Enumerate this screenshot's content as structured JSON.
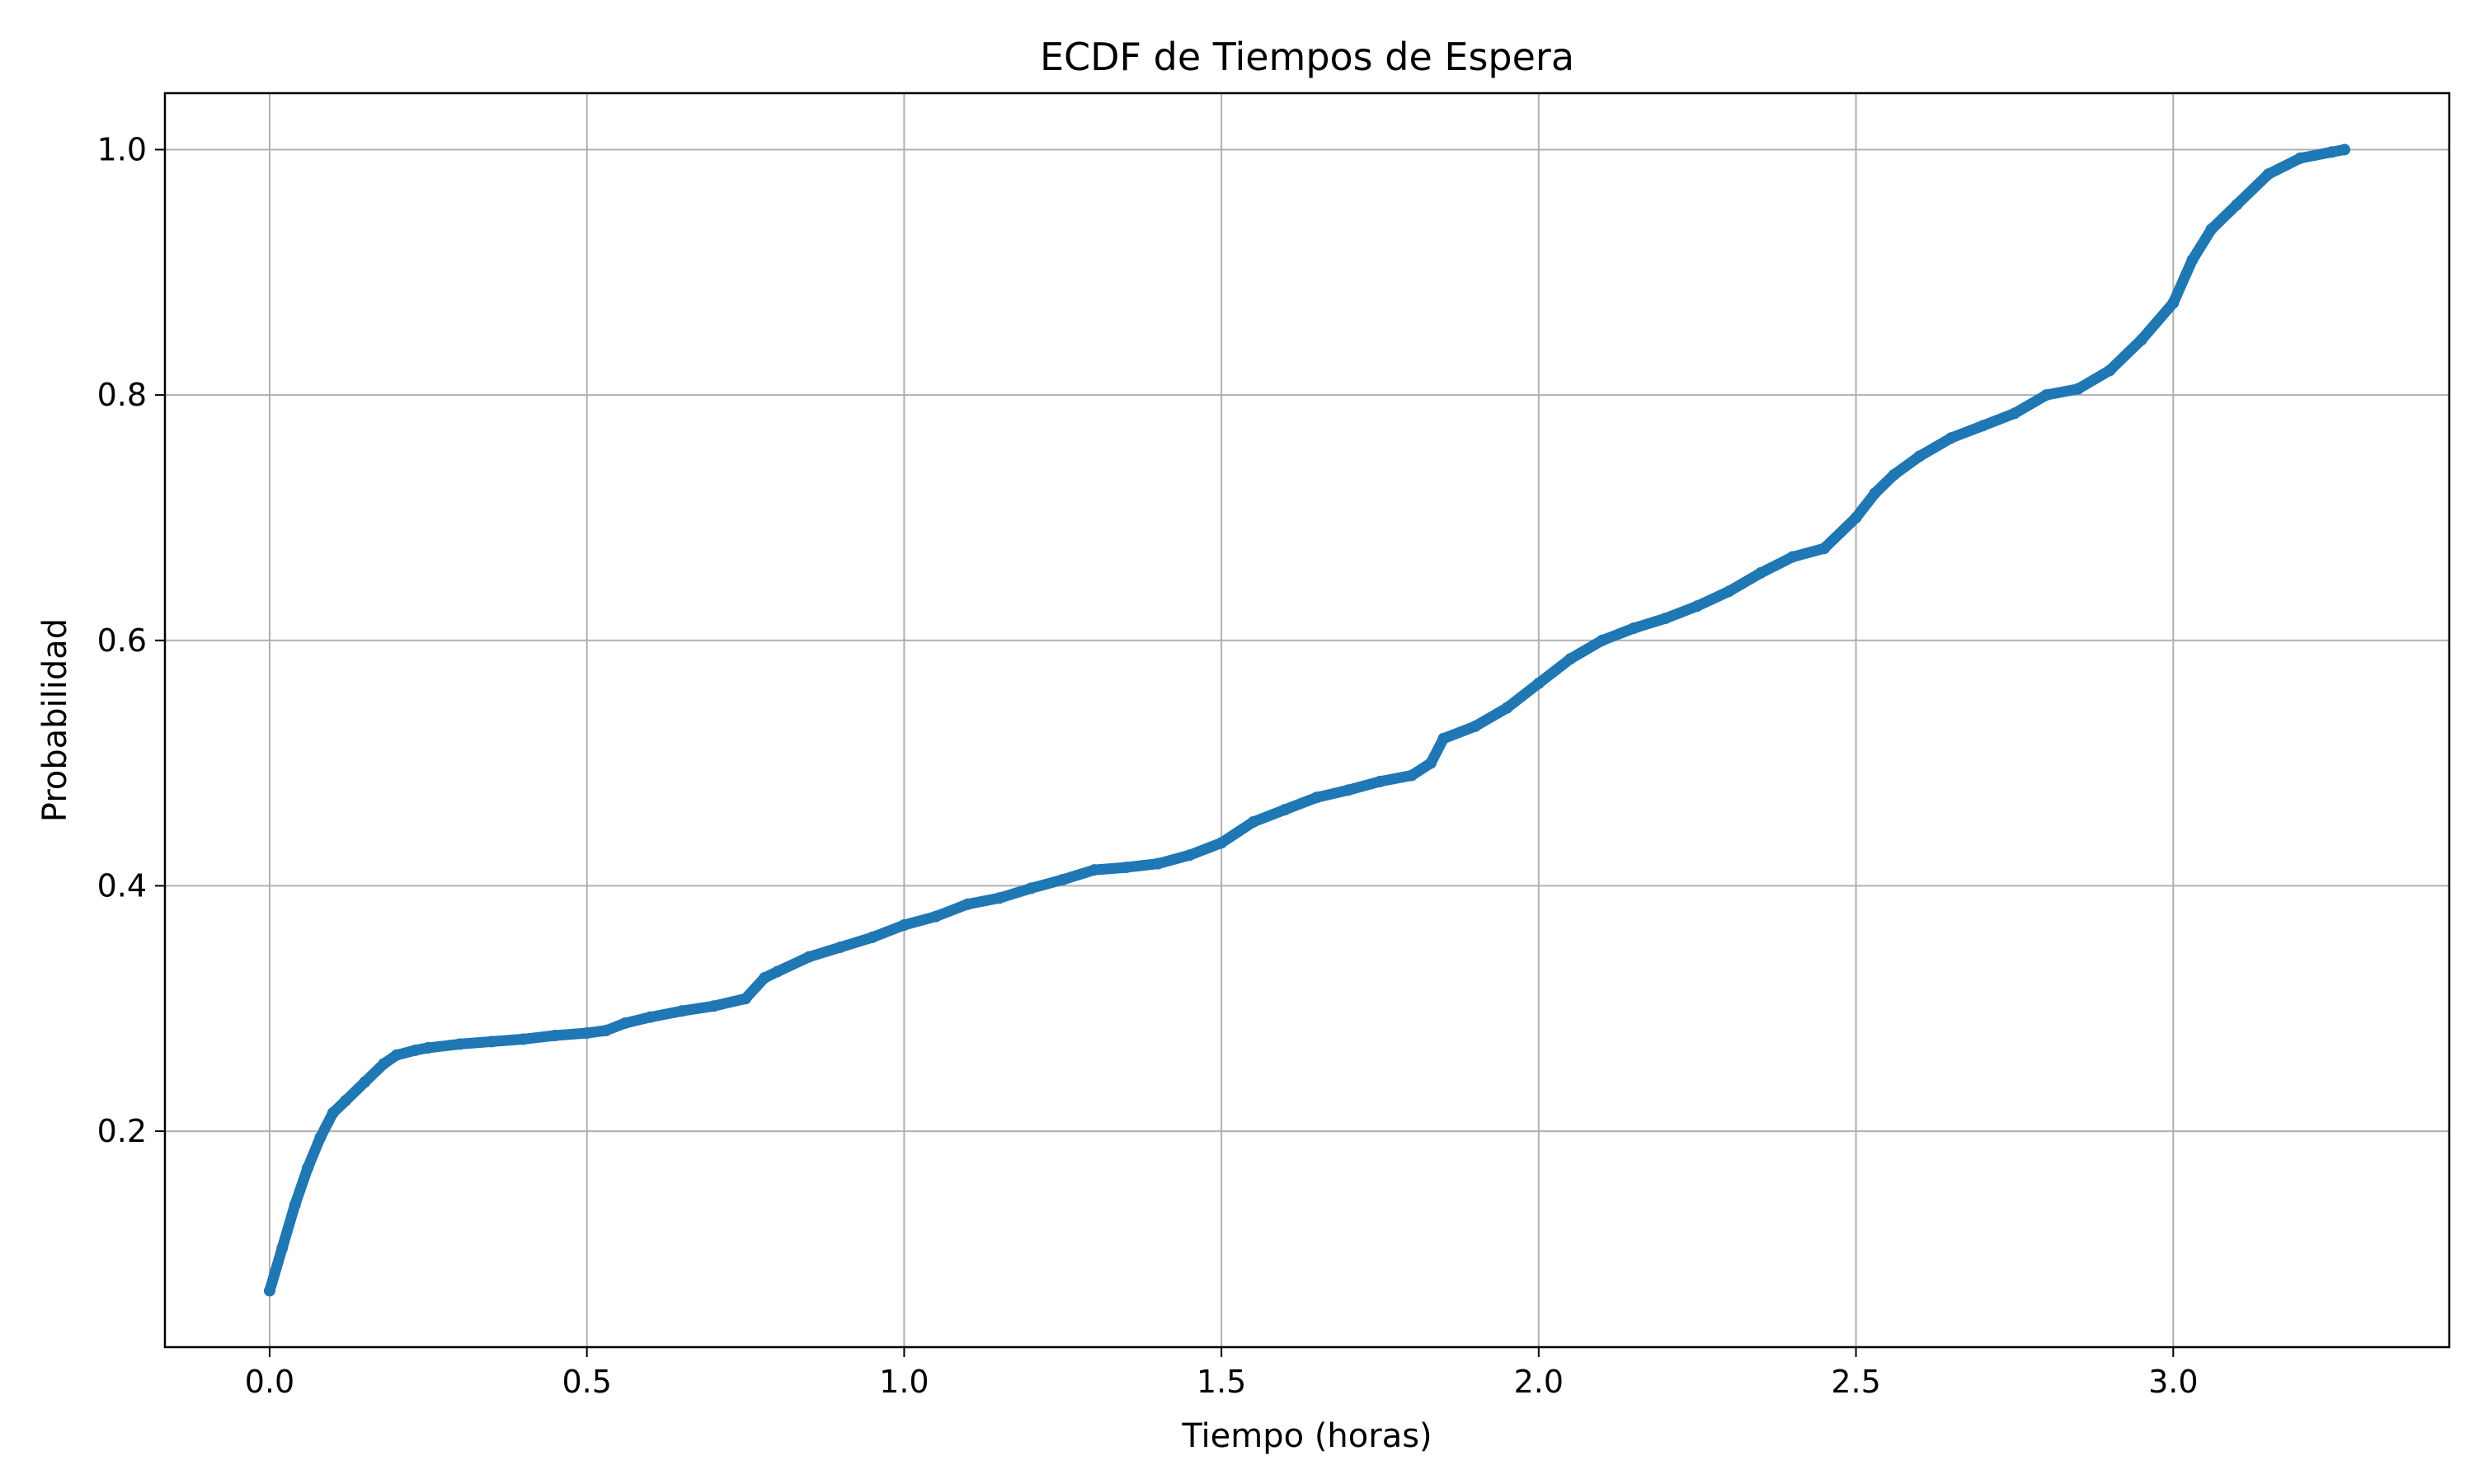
{
  "chart_data": {
    "type": "scatter",
    "title": "ECDF de Tiempos de Espera",
    "xlabel": "Tiempo (horas)",
    "ylabel": "Probabilidad",
    "xlim": [
      -0.165,
      3.435
    ],
    "ylim": [
      0.024,
      1.046
    ],
    "xticks": [
      0.0,
      0.5,
      1.0,
      1.5,
      2.0,
      2.5,
      3.0
    ],
    "xtick_labels": [
      "0.0",
      "0.5",
      "1.0",
      "1.5",
      "2.0",
      "2.5",
      "3.0"
    ],
    "yticks": [
      0.2,
      0.4,
      0.6,
      0.8,
      1.0
    ],
    "ytick_labels": [
      "0.2",
      "0.4",
      "0.6",
      "0.8",
      "1.0"
    ],
    "grid": true,
    "legend": "none",
    "series_color": "#1f77b4",
    "series": [
      {
        "x": [
          0.0,
          0.02,
          0.04,
          0.06,
          0.08,
          0.1,
          0.12,
          0.15,
          0.18,
          0.2,
          0.23,
          0.25,
          0.3,
          0.35,
          0.4,
          0.45,
          0.5,
          0.53,
          0.56,
          0.6,
          0.65,
          0.7,
          0.75,
          0.78,
          0.8,
          0.85,
          0.9,
          0.95,
          1.0,
          1.05,
          1.1,
          1.15,
          1.2,
          1.25,
          1.3,
          1.35,
          1.4,
          1.45,
          1.5,
          1.55,
          1.6,
          1.65,
          1.7,
          1.75,
          1.8,
          1.83,
          1.85,
          1.9,
          1.95,
          2.0,
          2.05,
          2.1,
          2.15,
          2.2,
          2.25,
          2.3,
          2.35,
          2.4,
          2.45,
          2.5,
          2.53,
          2.56,
          2.6,
          2.65,
          2.7,
          2.75,
          2.8,
          2.85,
          2.9,
          2.95,
          3.0,
          3.03,
          3.06,
          3.1,
          3.15,
          3.2,
          3.25,
          3.27
        ],
        "y": [
          0.07,
          0.105,
          0.14,
          0.17,
          0.195,
          0.215,
          0.225,
          0.24,
          0.255,
          0.262,
          0.266,
          0.268,
          0.271,
          0.273,
          0.275,
          0.278,
          0.28,
          0.282,
          0.288,
          0.293,
          0.298,
          0.302,
          0.308,
          0.325,
          0.33,
          0.342,
          0.35,
          0.358,
          0.368,
          0.375,
          0.385,
          0.39,
          0.398,
          0.405,
          0.413,
          0.415,
          0.418,
          0.425,
          0.435,
          0.452,
          0.462,
          0.472,
          0.478,
          0.485,
          0.49,
          0.5,
          0.52,
          0.53,
          0.545,
          0.565,
          0.585,
          0.6,
          0.61,
          0.618,
          0.628,
          0.64,
          0.655,
          0.668,
          0.675,
          0.7,
          0.72,
          0.735,
          0.75,
          0.765,
          0.775,
          0.785,
          0.8,
          0.805,
          0.82,
          0.845,
          0.875,
          0.91,
          0.935,
          0.955,
          0.98,
          0.993,
          0.998,
          1.0
        ]
      }
    ]
  }
}
